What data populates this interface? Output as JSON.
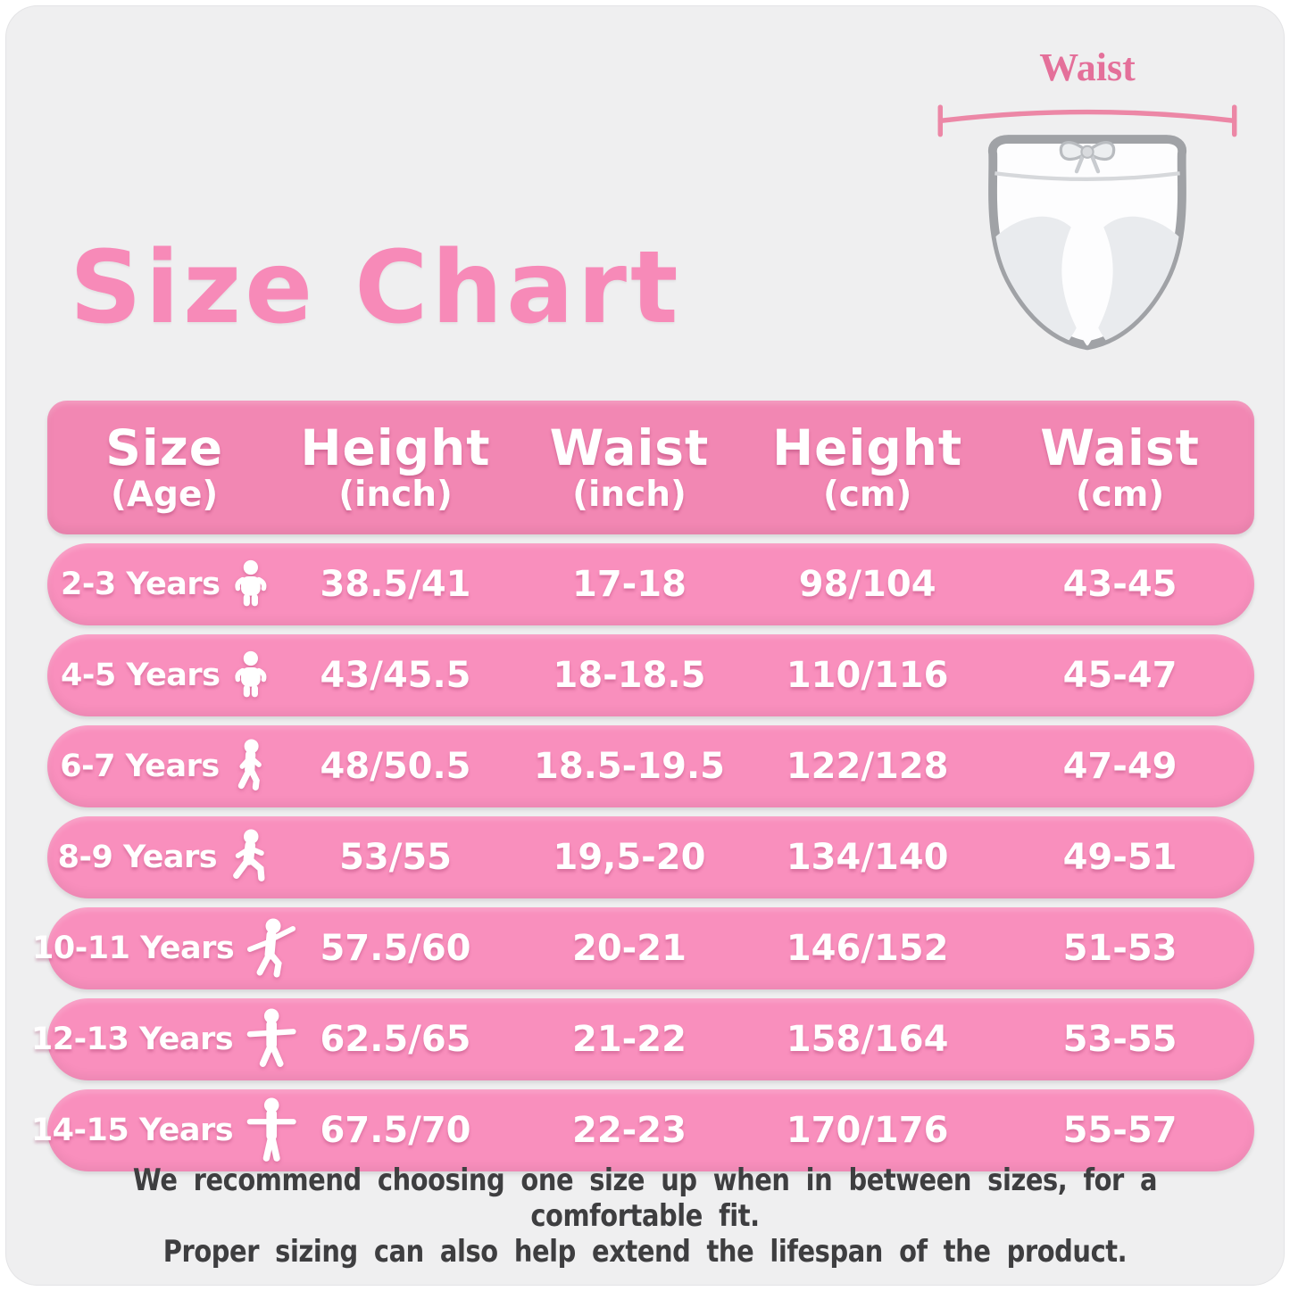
{
  "page": {
    "title": "Size Chart",
    "notes": [
      "We recommend choosing one size up when in between sizes, for a comfortable fit.",
      "Proper sizing can also help extend the lifespan of the product."
    ]
  },
  "diagram": {
    "label": "Waist"
  },
  "colors": {
    "card_bg": "#efeff0",
    "pink_title": "#f78ab8",
    "pink_header": "#f287b3",
    "pink_row": "#f98fbd",
    "pink_accent": "#e4709a",
    "note_text": "#3e3e40"
  },
  "table": {
    "headers": [
      {
        "main": "Size",
        "sub": "(Age)"
      },
      {
        "main": "Height",
        "sub": "(inch)"
      },
      {
        "main": "Waist",
        "sub": "(inch)"
      },
      {
        "main": "Height",
        "sub": "(cm)"
      },
      {
        "main": "Waist",
        "sub": "(cm)"
      }
    ],
    "rows": [
      {
        "age": "2-3 Years",
        "icon": "toddler",
        "height_inch": "38.5/41",
        "waist_inch": "17-18",
        "height_cm": "98/104",
        "waist_cm": "43-45"
      },
      {
        "age": "4-5 Years",
        "icon": "toddler",
        "height_inch": "43/45.5",
        "waist_inch": "18-18.5",
        "height_cm": "110/116",
        "waist_cm": "45-47"
      },
      {
        "age": "6-7 Years",
        "icon": "walking",
        "height_inch": "48/50.5",
        "waist_inch": "18.5-19.5",
        "height_cm": "122/128",
        "waist_cm": "47-49"
      },
      {
        "age": "8-9 Years",
        "icon": "striding",
        "height_inch": "53/55",
        "waist_inch": "19,5-20",
        "height_cm": "134/140",
        "waist_cm": "49-51"
      },
      {
        "age": "10-11 Years",
        "icon": "dancing",
        "height_inch": "57.5/60",
        "waist_inch": "20-21",
        "height_cm": "146/152",
        "waist_cm": "51-53"
      },
      {
        "age": "12-13 Years",
        "icon": "arms-out",
        "height_inch": "62.5/65",
        "waist_inch": "21-22",
        "height_cm": "158/164",
        "waist_cm": "53-55"
      },
      {
        "age": "14-15 Years",
        "icon": "standing",
        "height_inch": "67.5/70",
        "waist_inch": "22-23",
        "height_cm": "170/176",
        "waist_cm": "55-57"
      }
    ]
  }
}
